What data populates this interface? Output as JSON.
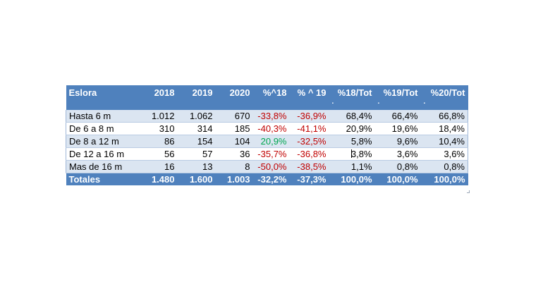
{
  "table": {
    "headers": [
      "Eslora",
      "2018",
      "2019",
      "2020",
      "%^18",
      "% ^ 19",
      "%18/Tot",
      "%19/Tot",
      "%20/Tot"
    ],
    "header_dots": [
      "",
      "",
      "",
      "",
      "",
      "",
      ".",
      ".",
      "."
    ],
    "rows": [
      [
        "Hasta 6 m",
        "1.012",
        "1.062",
        "670",
        "-33,8%",
        "-36,9%",
        "68,4%",
        "66,4%",
        "66,8%"
      ],
      [
        "De 6 a 8 m",
        "310",
        "314",
        "185",
        "-40,3%",
        "-41,1%",
        "20,9%",
        "19,6%",
        "18,4%"
      ],
      [
        "De 8 a 12 m",
        "86",
        "154",
        "104",
        "20,9%",
        "-32,5%",
        "5,8%",
        "9,6%",
        "10,4%"
      ],
      [
        "De 12 a 16 m",
        "56",
        "57",
        "36",
        "-35,7%",
        "-36,8%",
        "3,8%",
        "3,6%",
        "3,6%"
      ],
      [
        "Mas de 16 m",
        "16",
        "13",
        "8",
        "-50,0%",
        "-38,5%",
        "1,1%",
        "0,8%",
        "0,8%"
      ]
    ],
    "totals": [
      "Totales",
      "1.480",
      "1.600",
      "1.003",
      "-32,2%",
      "-37,3%",
      "100,0%",
      "100,0%",
      "100,0%"
    ]
  },
  "colors": {
    "header_bg": "#4f81bd",
    "band_bg": "#dbe5f1",
    "negative": "#c00000",
    "positive": "#00a650"
  }
}
